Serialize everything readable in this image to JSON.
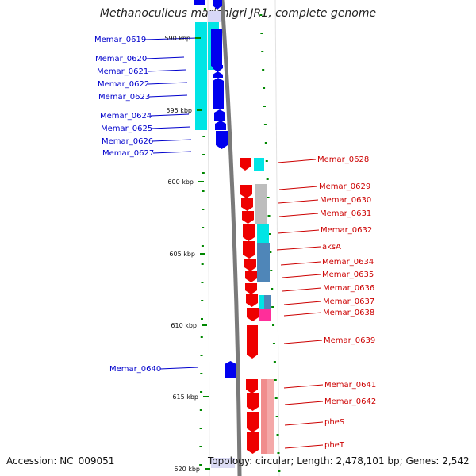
{
  "title": "Methanoculleus marisnigri JR1, complete genome",
  "accession": "Accession: NC_009051",
  "topology": "Topology: circular; Length: 2,478,101 bp; Genes: 2,542",
  "colors": {
    "left_gene": "#0000ee",
    "left_label": "#0000cc",
    "right_gene": "#ee0000",
    "right_label": "#cc0000",
    "cyan": "#00e5e5",
    "steelblue": "#4f86b8",
    "gray": "#bdbdbd",
    "pink": "#ff2e9a",
    "salmon": "#f08c8c",
    "tick": "#008800"
  },
  "ticks": [
    "590 kbp",
    "595 kbp",
    "600 kbp",
    "605 kbp",
    "610 kbp",
    "615 kbp",
    "620 kbp"
  ],
  "left_genes": [
    "Memar_0619",
    "Memar_0620",
    "Memar_0621",
    "Memar_0622",
    "Memar_0623",
    "Memar_0624",
    "Memar_0625",
    "Memar_0626",
    "Memar_0627",
    "Memar_0640"
  ],
  "right_genes": [
    "Memar_0628",
    "Memar_0629",
    "Memar_0630",
    "Memar_0631",
    "Memar_0632",
    "aksA",
    "Memar_0634",
    "Memar_0635",
    "Memar_0636",
    "Memar_0637",
    "Memar_0638",
    "Memar_0639",
    "Memar_0641",
    "Memar_0642",
    "pheS",
    "pheT"
  ]
}
